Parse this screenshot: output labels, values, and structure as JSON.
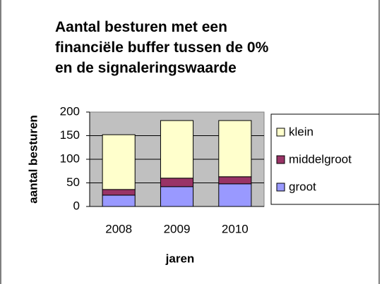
{
  "chart_data": {
    "type": "bar",
    "stacked": true,
    "title": [
      "Aantal besturen met een",
      "financiële buffer tussen de 0%",
      "en de signaleringswaarde"
    ],
    "x_label": "jaren",
    "y_label": "aantal besturen",
    "categories": [
      "2008",
      "2009",
      "2010"
    ],
    "series": [
      {
        "name": "groot",
        "color": "#9999ff",
        "values": [
          24,
          42,
          48
        ]
      },
      {
        "name": "middelgroot",
        "color": "#993366",
        "values": [
          12,
          18,
          15
        ]
      },
      {
        "name": "klein",
        "color": "#ffffcc",
        "values": [
          116,
          122,
          119
        ]
      }
    ],
    "ylim": [
      0,
      200
    ],
    "yticks": [
      0,
      50,
      100,
      150,
      200
    ],
    "grid": true,
    "legend": "right"
  }
}
